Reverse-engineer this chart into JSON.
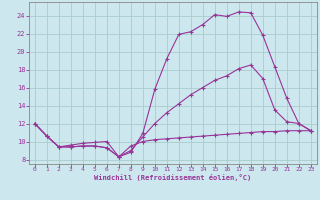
{
  "xlabel": "Windchill (Refroidissement éolien,°C)",
  "bg_color": "#cce8ee",
  "line_color": "#993399",
  "grid_color": "#aacccc",
  "xlim": [
    -0.5,
    23.5
  ],
  "ylim": [
    7.5,
    25.5
  ],
  "xticks": [
    0,
    1,
    2,
    3,
    4,
    5,
    6,
    7,
    8,
    9,
    10,
    11,
    12,
    13,
    14,
    15,
    16,
    17,
    18,
    19,
    20,
    21,
    22,
    23
  ],
  "yticks": [
    8,
    10,
    12,
    14,
    16,
    18,
    20,
    22,
    24
  ],
  "curve1_x": [
    0,
    1,
    2,
    3,
    4,
    5,
    6,
    7,
    8,
    9,
    10,
    11,
    12,
    13,
    14,
    15,
    16,
    17,
    18,
    19,
    20,
    21,
    22,
    23
  ],
  "curve1_y": [
    12.0,
    10.6,
    9.4,
    9.4,
    9.5,
    9.5,
    9.3,
    8.3,
    8.8,
    10.9,
    15.8,
    19.2,
    21.9,
    22.2,
    23.0,
    24.1,
    23.9,
    24.4,
    24.3,
    21.8,
    18.3,
    14.8,
    12.0,
    11.2
  ],
  "curve2_x": [
    0,
    1,
    2,
    3,
    4,
    5,
    6,
    7,
    8,
    9,
    10,
    11,
    12,
    13,
    14,
    15,
    16,
    17,
    18,
    19,
    20,
    21,
    22,
    23
  ],
  "curve2_y": [
    12.0,
    10.6,
    9.4,
    9.4,
    9.5,
    9.5,
    9.3,
    8.3,
    9.5,
    10.0,
    10.2,
    10.3,
    10.4,
    10.5,
    10.6,
    10.7,
    10.8,
    10.9,
    11.0,
    11.1,
    11.1,
    11.2,
    11.2,
    11.2
  ],
  "curve3_x": [
    0,
    1,
    2,
    3,
    4,
    5,
    6,
    7,
    8,
    9,
    10,
    11,
    12,
    13,
    14,
    15,
    16,
    17,
    18,
    19,
    20,
    21,
    22,
    23
  ],
  "curve3_y": [
    12.0,
    10.6,
    9.4,
    9.6,
    9.8,
    9.9,
    10.0,
    8.3,
    9.0,
    10.5,
    12.0,
    13.2,
    14.2,
    15.2,
    16.0,
    16.8,
    17.3,
    18.1,
    18.5,
    17.0,
    13.5,
    12.2,
    12.0,
    11.2
  ]
}
